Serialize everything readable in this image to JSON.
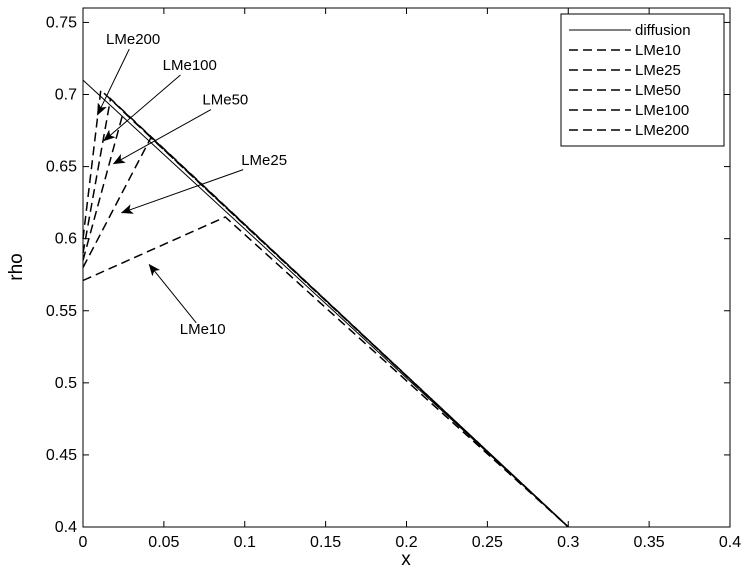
{
  "chart_data": {
    "type": "line",
    "title": "",
    "xlabel": "x",
    "ylabel": "rho",
    "xlim": [
      0,
      0.4
    ],
    "ylim": [
      0.4,
      0.76
    ],
    "xticks": [
      0,
      0.05,
      0.1,
      0.15,
      0.2,
      0.25,
      0.3,
      0.35,
      0.4
    ],
    "yticks": [
      0.4,
      0.45,
      0.5,
      0.55,
      0.6,
      0.65,
      0.7,
      0.75
    ],
    "xtick_labels": [
      "0",
      "0.05",
      "0.1",
      "0.15",
      "0.2",
      "0.25",
      "0.3",
      "0.35",
      "0.4"
    ],
    "ytick_labels": [
      "0.4",
      "0.45",
      "0.5",
      "0.55",
      "0.6",
      "0.65",
      "0.7",
      "0.75"
    ],
    "grid": false,
    "legend_position": "top-right",
    "series": [
      {
        "name": "diffusion",
        "style": "solid",
        "x": [
          0,
          0.3
        ],
        "y": [
          0.71,
          0.4
        ]
      },
      {
        "name": "LMe10",
        "style": "dashed",
        "x": [
          0,
          0.088,
          0.3
        ],
        "y": [
          0.571,
          0.615,
          0.4
        ]
      },
      {
        "name": "LMe25",
        "style": "dashed",
        "x": [
          0,
          0.042,
          0.3
        ],
        "y": [
          0.58,
          0.67,
          0.4
        ]
      },
      {
        "name": "LMe50",
        "style": "dashed",
        "x": [
          0,
          0.025,
          0.3
        ],
        "y": [
          0.585,
          0.688,
          0.4
        ]
      },
      {
        "name": "LMe100",
        "style": "dashed",
        "x": [
          0,
          0.017,
          0.3
        ],
        "y": [
          0.59,
          0.697,
          0.4
        ]
      },
      {
        "name": "LMe200",
        "style": "dashed",
        "x": [
          0,
          0.011,
          0.3
        ],
        "y": [
          0.6,
          0.703,
          0.4
        ]
      }
    ],
    "annotations": [
      {
        "text": "LMe200",
        "text_x": 0.031,
        "text_y": 0.735,
        "arrow_to": [
          0.009,
          0.686
        ]
      },
      {
        "text": "LMe100",
        "text_x": 0.066,
        "text_y": 0.717,
        "arrow_to": [
          0.013,
          0.668
        ]
      },
      {
        "text": "LMe50",
        "text_x": 0.088,
        "text_y": 0.693,
        "arrow_to": [
          0.019,
          0.652
        ]
      },
      {
        "text": "LMe25",
        "text_x": 0.112,
        "text_y": 0.651,
        "arrow_to": [
          0.024,
          0.618
        ]
      },
      {
        "text": "LMe10",
        "text_x": 0.074,
        "text_y": 0.534,
        "arrow_to": [
          0.041,
          0.582
        ]
      }
    ]
  }
}
